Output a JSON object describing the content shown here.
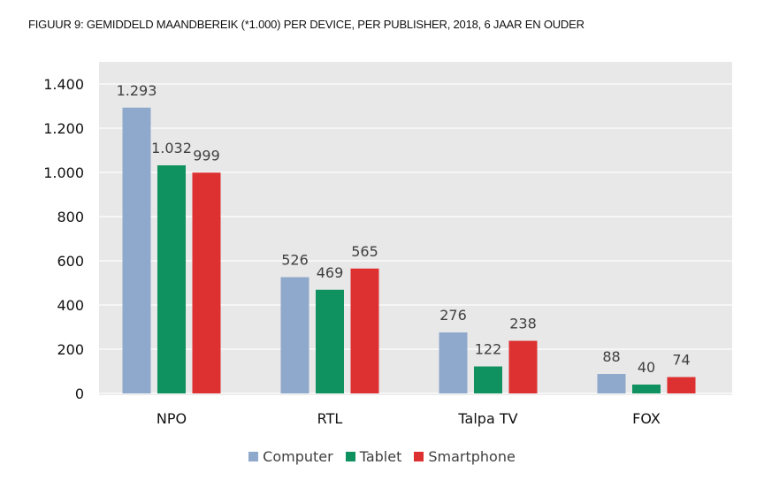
{
  "chart_data": {
    "type": "bar",
    "title": "FIGUUR 9: GEMIDDELD MAANDBEREIK (*1.000) PER DEVICE, PER PUBLISHER, 2018, 6 JAAR EN OUDER",
    "categories": [
      "NPO",
      "RTL",
      "Talpa TV",
      "FOX"
    ],
    "series": [
      {
        "name": "Computer",
        "color": "#8fa9cc",
        "values": [
          1293,
          526,
          276,
          88
        ],
        "labels": [
          "1.293",
          "526",
          "276",
          "88"
        ]
      },
      {
        "name": "Tablet",
        "color": "#0f9160",
        "values": [
          1032,
          469,
          122,
          40
        ],
        "labels": [
          "1.032",
          "469",
          "122",
          "40"
        ]
      },
      {
        "name": "Smartphone",
        "color": "#dd3131",
        "values": [
          999,
          565,
          238,
          74
        ],
        "labels": [
          "999",
          "565",
          "238",
          "74"
        ]
      }
    ],
    "yticks": [
      0,
      200,
      400,
      600,
      800,
      1000,
      1200,
      1400
    ],
    "ytick_labels": [
      "0",
      "200",
      "400",
      "600",
      "800",
      "1.000",
      "1.200",
      "1.400"
    ],
    "ylim": [
      0,
      1400
    ],
    "grid": true,
    "legend_position": "bottom",
    "plot_background": "#e8e8e8"
  }
}
